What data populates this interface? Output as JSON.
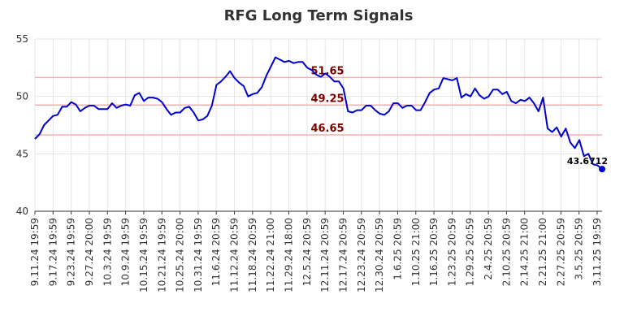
{
  "chart_data": {
    "type": "line",
    "title": "RFG Long Term Signals",
    "xlabel": "",
    "ylabel": "",
    "ylim": [
      40,
      55
    ],
    "y_ticks": [
      40,
      45,
      50,
      55
    ],
    "x_tick_labels": [
      "9.11.24 19:59",
      "9.17.24 19:59",
      "9.23.24 19:59",
      "9.27.24 20:00",
      "10.3.24 19:59",
      "10.9.24 19:59",
      "10.15.24 19:59",
      "10.21.24 19:59",
      "10.25.24 20:00",
      "10.31.24 19:59",
      "11.6.24 20:59",
      "11.12.24 20:59",
      "11.18.24 20:59",
      "11.22.24 21:00",
      "11.29.24 18:00",
      "12.5.24 20:59",
      "12.11.24 20:59",
      "12.17.24 20:59",
      "12.23.24 20:59",
      "12.30.24 20:59",
      "1.6.25 20:59",
      "1.10.25 21:00",
      "1.16.25 20:59",
      "1.23.25 20:59",
      "1.29.25 20:59",
      "2.4.25 20:59",
      "2.10.25 20:59",
      "2.14.25 21:00",
      "2.21.25 21:00",
      "2.27.25 20:59",
      "3.5.25 20:59",
      "3.11.25 19:59"
    ],
    "grid": true,
    "line_color": "#0000cc",
    "reference_lines": [
      {
        "value": 51.65,
        "label": "51.65",
        "color": "#f4b0b0",
        "label_color": "#7a0000"
      },
      {
        "value": 49.25,
        "label": "49.25",
        "color": "#f4b0b0",
        "label_color": "#7a0000"
      },
      {
        "value": 46.65,
        "label": "46.65",
        "color": "#f4b0b0",
        "label_color": "#7a0000"
      }
    ],
    "last_value_label": "43.6712",
    "series": [
      {
        "values": [
          46.3,
          46.7,
          47.5,
          47.9,
          48.3,
          48.4,
          49.1,
          49.1,
          49.5,
          49.3,
          48.7,
          49.0,
          49.2,
          49.2,
          48.9,
          48.9,
          48.9,
          49.4,
          49.0,
          49.2,
          49.3,
          49.2,
          50.1,
          50.3,
          49.6,
          49.9,
          49.9,
          49.8,
          49.5,
          48.9,
          48.4,
          48.6,
          48.6,
          49.0,
          49.1,
          48.6,
          47.9,
          48.0,
          48.3,
          49.2,
          51.0,
          51.3,
          51.7,
          52.2,
          51.6,
          51.2,
          50.9,
          50.0,
          50.2,
          50.3,
          50.8,
          51.8,
          52.6,
          53.4,
          53.2,
          53.0,
          53.1,
          52.9,
          53.0,
          53.0,
          52.5,
          52.3,
          51.9,
          51.7,
          52.0,
          51.7,
          51.3,
          51.3,
          50.7,
          48.7,
          48.6,
          48.8,
          48.8,
          49.2,
          49.2,
          48.8,
          48.5,
          48.4,
          48.7,
          49.4,
          49.4,
          49.0,
          49.2,
          49.2,
          48.8,
          48.8,
          49.5,
          50.3,
          50.6,
          50.7,
          51.6,
          51.5,
          51.4,
          51.6,
          49.9,
          50.2,
          50.0,
          50.7,
          50.1,
          49.8,
          50.0,
          50.6,
          50.6,
          50.2,
          50.4,
          49.6,
          49.4,
          49.7,
          49.6,
          49.9,
          49.4,
          48.7,
          49.9,
          47.2,
          46.9,
          47.3,
          46.5,
          47.2,
          46.0,
          45.5,
          46.2,
          44.8,
          45.0,
          44.1,
          44.0,
          43.6712
        ]
      }
    ]
  }
}
